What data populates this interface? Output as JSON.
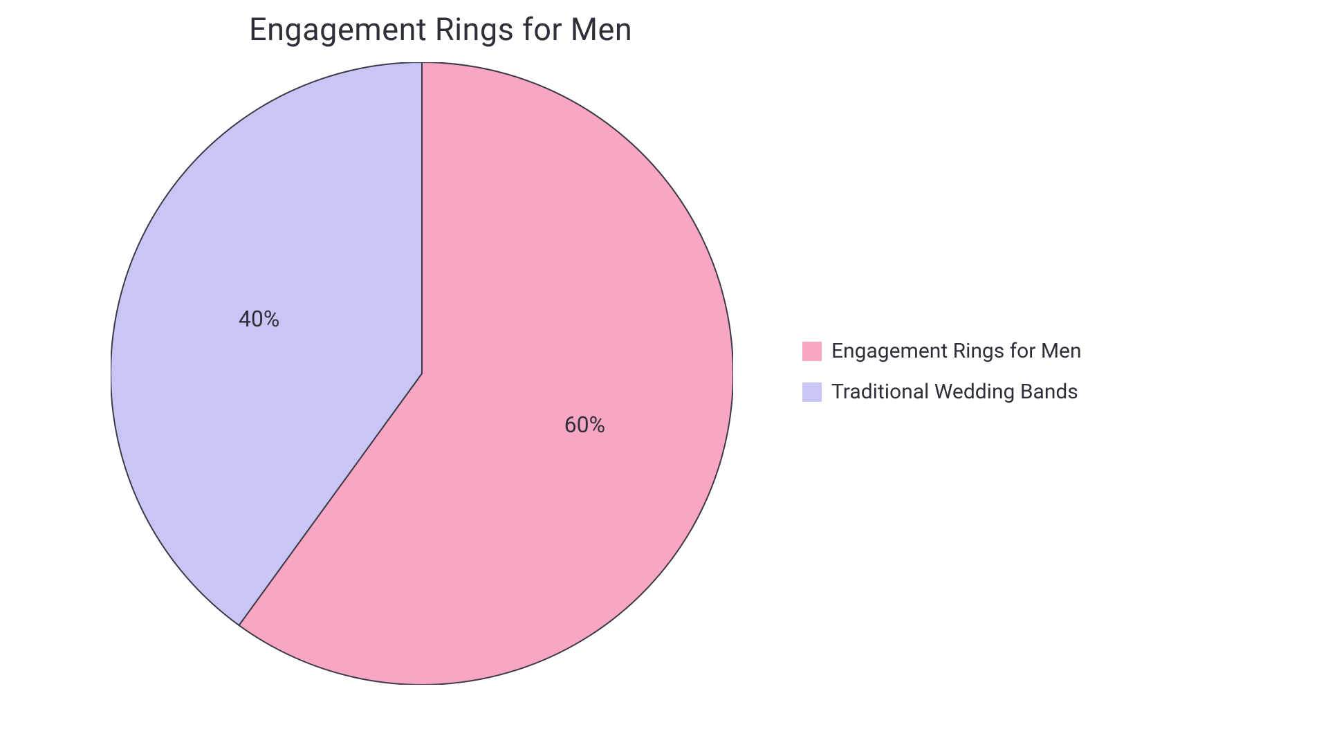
{
  "chart": {
    "type": "pie",
    "title": "Engagement Rings for Men",
    "title_fontsize": 45,
    "title_color": "#2f2f3a",
    "background_color": "#ffffff",
    "radius": 450,
    "stroke_color": "#3a3a46",
    "stroke_width": 2,
    "label_fontsize": 32,
    "label_color": "#2f2f3a",
    "slices": [
      {
        "name": "Engagement Rings for Men",
        "value": 60,
        "label": "60%",
        "color": "#f8a6c4"
      },
      {
        "name": "Traditional Wedding Bands",
        "value": 40,
        "label": "40%",
        "color": "#c9c6f5"
      }
    ],
    "legend": {
      "swatch_size": 28,
      "fontsize": 30,
      "text_color": "#2f2f3a"
    }
  }
}
